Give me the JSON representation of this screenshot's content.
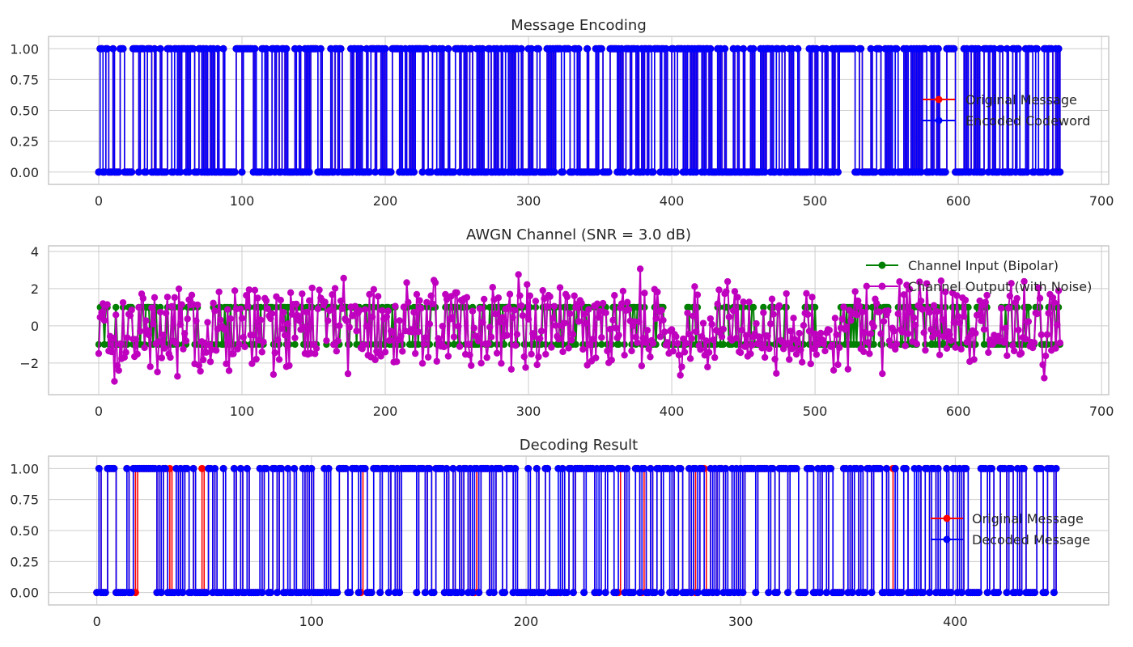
{
  "chart_data": [
    {
      "type": "line",
      "title": "Message Encoding",
      "xlim": [
        -35,
        705
      ],
      "ylim": [
        -0.1,
        1.1
      ],
      "xticks": [
        0,
        100,
        200,
        300,
        400,
        500,
        600,
        700
      ],
      "yticks": [
        0.0,
        0.25,
        0.5,
        0.75,
        1.0
      ],
      "ytick_format": 2,
      "grid": true,
      "legend_position": "right",
      "generate": {
        "kind": "binary",
        "length": 672,
        "seed": 12345,
        "p_one": 0.5
      },
      "series": [
        {
          "name": "Original Message",
          "color": "#ff0000",
          "style": "step",
          "source": "base"
        },
        {
          "name": "Encoded Codeword",
          "color": "#0000ff",
          "style": "step",
          "source": "base"
        }
      ]
    },
    {
      "type": "line",
      "title": "AWGN Channel (SNR = 3.0 dB)",
      "xlim": [
        -35,
        705
      ],
      "ylim": [
        -3.7,
        4.3
      ],
      "xticks": [
        0,
        100,
        200,
        300,
        400,
        500,
        600,
        700
      ],
      "yticks": [
        -2,
        0,
        2,
        4
      ],
      "ytick_format": 0,
      "grid": true,
      "legend_position": "top-right",
      "generate": {
        "kind": "awgn",
        "length": 672,
        "seed": 777,
        "p_one": 0.5,
        "sigma": 0.7
      },
      "series": [
        {
          "name": "Channel Input (Bipolar)",
          "color": "#008000",
          "style": "line",
          "source": "input"
        },
        {
          "name": "Channel Output (with Noise)",
          "color": "#bf00bf",
          "style": "line",
          "source": "output"
        }
      ]
    },
    {
      "type": "line",
      "title": "Decoding Result",
      "xlim": [
        -22.5,
        471.5
      ],
      "ylim": [
        -0.1,
        1.1
      ],
      "xticks": [
        0,
        100,
        200,
        300,
        400
      ],
      "yticks": [
        0.0,
        0.25,
        0.5,
        0.75,
        1.0
      ],
      "ytick_format": 2,
      "grid": true,
      "legend_position": "right",
      "generate": {
        "kind": "decode",
        "length": 448,
        "seed": 4242,
        "p_one": 0.5,
        "error_rate": 0.035
      },
      "series": [
        {
          "name": "Original Message",
          "color": "#ff0000",
          "style": "step",
          "source": "base"
        },
        {
          "name": "Decoded Message",
          "color": "#0000ff",
          "style": "step",
          "source": "decoded"
        }
      ]
    }
  ]
}
